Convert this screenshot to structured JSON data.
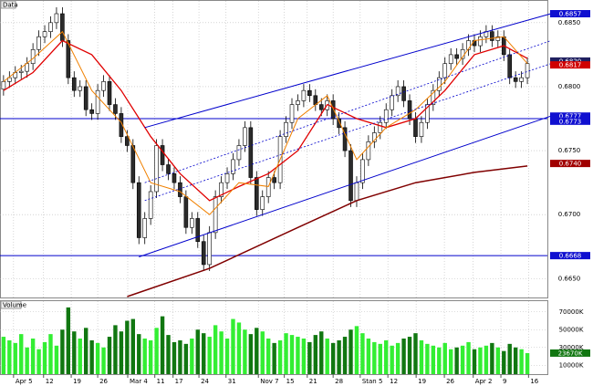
{
  "chart_data": {
    "type": "candlestick",
    "label": "Data",
    "volume_title": "Volume",
    "ylim": [
      0.6636,
      0.6862
    ],
    "yticks": [
      {
        "value": 0.685,
        "label": "0.6850"
      },
      {
        "value": 0.68,
        "label": "0.6800"
      },
      {
        "value": 0.675,
        "label": "0.6750"
      },
      {
        "value": 0.67,
        "label": "0.6700"
      },
      {
        "value": 0.665,
        "label": "0.6650"
      }
    ],
    "xlim": [
      -0.6,
      92.4
    ],
    "xticks": [
      {
        "value": 1.7,
        "label": "Apr 5"
      },
      {
        "value": 6.8,
        "label": "12"
      },
      {
        "value": 11.5,
        "label": "19"
      },
      {
        "value": 16,
        "label": "26"
      },
      {
        "value": 21.1,
        "label": "Mar 4"
      },
      {
        "value": 25.7,
        "label": "11"
      },
      {
        "value": 28.8,
        "label": "17"
      },
      {
        "value": 33.2,
        "label": "24"
      },
      {
        "value": 37.8,
        "label": "31"
      },
      {
        "value": 43.3,
        "label": "Nov 7"
      },
      {
        "value": 47.7,
        "label": "15"
      },
      {
        "value": 51.6,
        "label": "21"
      },
      {
        "value": 56,
        "label": "28"
      },
      {
        "value": 60.6,
        "label": "Stan 5"
      },
      {
        "value": 65.3,
        "label": "12"
      },
      {
        "value": 70.1,
        "label": "19"
      },
      {
        "value": 74.9,
        "label": "26"
      },
      {
        "value": 79.8,
        "label": "Apr 2"
      },
      {
        "value": 84.5,
        "label": "9"
      },
      {
        "value": 89.2,
        "label": "16"
      }
    ],
    "grid": true,
    "up_color": "#ffffff",
    "down_color": "#2b2b2b",
    "open": [
      0.6798,
      0.6804,
      0.6807,
      0.6811,
      0.6812,
      0.6818,
      0.6829,
      0.6839,
      0.6843,
      0.685,
      0.6857,
      0.6836,
      0.6807,
      0.6797,
      0.68,
      0.6782,
      0.6779,
      0.6797,
      0.6804,
      0.6786,
      0.6779,
      0.6761,
      0.6754,
      0.6725,
      0.6682,
      0.6697,
      0.6718,
      0.6754,
      0.6739,
      0.6732,
      0.6725,
      0.6714,
      0.669,
      0.6697,
      0.6679,
      0.6661,
      0.6686,
      0.6714,
      0.6725,
      0.6732,
      0.6743,
      0.6754,
      0.6768,
      0.6729,
      0.6704,
      0.6714,
      0.6729,
      0.6725,
      0.6761,
      0.6772,
      0.6786,
      0.6789,
      0.6797,
      0.6793,
      0.6786,
      0.6782,
      0.6789,
      0.6775,
      0.6768,
      0.675,
      0.6711,
      0.6725,
      0.6743,
      0.6757,
      0.6764,
      0.6772,
      0.6782,
      0.6793,
      0.68,
      0.6789,
      0.6775,
      0.6761,
      0.6772,
      0.6786,
      0.6797,
      0.6807,
      0.6818,
      0.6825,
      0.6822,
      0.6829,
      0.6836,
      0.6832,
      0.6839,
      0.6843,
      0.6836,
      0.6839,
      0.6825,
      0.6807,
      0.6804,
      0.6807
    ],
    "high": [
      0.6809,
      0.6812,
      0.6816,
      0.6817,
      0.6823,
      0.6834,
      0.6844,
      0.6848,
      0.6855,
      0.6862,
      0.6862,
      0.6841,
      0.6812,
      0.6805,
      0.6805,
      0.6787,
      0.6802,
      0.6809,
      0.6809,
      0.6791,
      0.6784,
      0.6766,
      0.6759,
      0.673,
      0.6702,
      0.6723,
      0.6759,
      0.6759,
      0.6744,
      0.6737,
      0.673,
      0.6719,
      0.6702,
      0.6702,
      0.6684,
      0.6691,
      0.6719,
      0.673,
      0.6737,
      0.6748,
      0.6759,
      0.6773,
      0.6773,
      0.6734,
      0.6719,
      0.6734,
      0.6734,
      0.6766,
      0.6777,
      0.6791,
      0.6794,
      0.6802,
      0.6802,
      0.6798,
      0.6791,
      0.6794,
      0.6794,
      0.678,
      0.6773,
      0.6755,
      0.673,
      0.6748,
      0.6762,
      0.6769,
      0.6777,
      0.6787,
      0.6798,
      0.6805,
      0.6805,
      0.6794,
      0.678,
      0.6777,
      0.6791,
      0.6802,
      0.6812,
      0.6823,
      0.683,
      0.683,
      0.6834,
      0.6841,
      0.6841,
      0.6844,
      0.6848,
      0.6848,
      0.6844,
      0.6844,
      0.683,
      0.6812,
      0.6812,
      0.6823
    ],
    "low": [
      0.6793,
      0.6799,
      0.6802,
      0.6806,
      0.6807,
      0.6813,
      0.6824,
      0.6834,
      0.6838,
      0.6845,
      0.6831,
      0.6802,
      0.6792,
      0.6792,
      0.6777,
      0.6774,
      0.6774,
      0.6792,
      0.6781,
      0.6774,
      0.6756,
      0.6749,
      0.672,
      0.6677,
      0.6677,
      0.6692,
      0.6713,
      0.6734,
      0.6727,
      0.672,
      0.6709,
      0.6685,
      0.6685,
      0.6674,
      0.6656,
      0.6656,
      0.6681,
      0.6709,
      0.672,
      0.6727,
      0.6738,
      0.6749,
      0.6724,
      0.6699,
      0.6699,
      0.6709,
      0.672,
      0.672,
      0.6756,
      0.6767,
      0.6781,
      0.6784,
      0.6788,
      0.6781,
      0.6777,
      0.6777,
      0.677,
      0.6763,
      0.6745,
      0.6706,
      0.6706,
      0.672,
      0.6738,
      0.6752,
      0.6759,
      0.6767,
      0.6777,
      0.6788,
      0.6784,
      0.677,
      0.6756,
      0.6756,
      0.6767,
      0.6781,
      0.6792,
      0.6802,
      0.6813,
      0.6817,
      0.6817,
      0.6824,
      0.6827,
      0.6827,
      0.6834,
      0.6831,
      0.6831,
      0.682,
      0.6802,
      0.6799,
      0.6799,
      0.6802
    ],
    "close": [
      0.6804,
      0.6807,
      0.6811,
      0.6812,
      0.6818,
      0.6829,
      0.6839,
      0.6843,
      0.685,
      0.6857,
      0.6836,
      0.6807,
      0.6797,
      0.68,
      0.6782,
      0.6779,
      0.6797,
      0.6804,
      0.6786,
      0.6779,
      0.6761,
      0.6754,
      0.6725,
      0.6682,
      0.6697,
      0.6718,
      0.6754,
      0.6739,
      0.6732,
      0.6725,
      0.6714,
      0.669,
      0.6697,
      0.6679,
      0.6661,
      0.6686,
      0.6714,
      0.6725,
      0.6732,
      0.6743,
      0.6754,
      0.6768,
      0.6729,
      0.6704,
      0.6714,
      0.6729,
      0.6725,
      0.6761,
      0.6772,
      0.6786,
      0.6789,
      0.6797,
      0.6793,
      0.6786,
      0.6782,
      0.6789,
      0.6775,
      0.6768,
      0.675,
      0.6711,
      0.6725,
      0.6743,
      0.6757,
      0.6764,
      0.6772,
      0.6782,
      0.6793,
      0.68,
      0.6789,
      0.6775,
      0.6761,
      0.6772,
      0.6786,
      0.6797,
      0.6807,
      0.6818,
      0.6825,
      0.6822,
      0.6829,
      0.6836,
      0.6832,
      0.6839,
      0.6843,
      0.6836,
      0.6839,
      0.6825,
      0.6807,
      0.6804,
      0.6807,
      0.6818
    ],
    "lines": [
      {
        "color": "#e00000",
        "width": 1.3,
        "x": [
          0,
          5,
          10,
          15,
          20,
          25,
          30,
          35,
          40,
          45,
          50,
          55,
          60,
          65,
          70,
          75,
          80,
          85,
          89
        ],
        "values": [
          0.6797,
          0.6811,
          0.6836,
          0.6825,
          0.6797,
          0.6761,
          0.6732,
          0.6711,
          0.6722,
          0.6732,
          0.675,
          0.6786,
          0.6775,
          0.6768,
          0.6775,
          0.6797,
          0.6825,
          0.6832,
          0.6822
        ]
      },
      {
        "color": "#f08000",
        "width": 1,
        "x": [
          0,
          5,
          10,
          15,
          20,
          25,
          30,
          35,
          40,
          45,
          50,
          55,
          60,
          65,
          70,
          75,
          80,
          85,
          89
        ],
        "values": [
          0.6804,
          0.6822,
          0.6843,
          0.6797,
          0.6772,
          0.6725,
          0.6718,
          0.67,
          0.6725,
          0.6722,
          0.6775,
          0.6793,
          0.6743,
          0.6768,
          0.6782,
          0.6804,
          0.6836,
          0.6839,
          0.6818
        ]
      },
      {
        "color": "#800000",
        "width": 1.5,
        "x": [
          21,
          35,
          50,
          60,
          70,
          80,
          89
        ],
        "values": [
          0.6636,
          0.6658,
          0.669,
          0.6711,
          0.6725,
          0.6733,
          0.6738
        ]
      },
      {
        "color": "#0000cc",
        "width": 1,
        "x": [
          24,
          93
        ],
        "values": [
          0.6768,
          0.6857
        ]
      },
      {
        "color": "#0000cc",
        "width": 1,
        "x": [
          23,
          93
        ],
        "values": [
          0.6667,
          0.6777
        ]
      },
      {
        "color": "#0000cc",
        "width": 0.8,
        "dash": true,
        "x": [
          24,
          93
        ],
        "values": [
          0.6725,
          0.6836
        ]
      },
      {
        "color": "#0000cc",
        "width": 0.8,
        "dash": true,
        "x": [
          24,
          93
        ],
        "values": [
          0.6711,
          0.6818
        ]
      }
    ],
    "hlines": [
      {
        "value": 0.6775,
        "color": "#0000cc"
      },
      {
        "value": 0.6668,
        "color": "#0000cc"
      }
    ],
    "price_labels": [
      {
        "value": 0.6857,
        "label": "0.6857",
        "color": "#1010d0"
      },
      {
        "value": 0.682,
        "label": "0.6820",
        "color": "#202060"
      },
      {
        "value": 0.6817,
        "label": "0.6817",
        "color": "#d00000"
      },
      {
        "value": 0.6777,
        "label": "0.6777",
        "color": "#1010d0"
      },
      {
        "value": 0.6773,
        "label": "0.6773",
        "color": "#1010d0"
      },
      {
        "value": 0.674,
        "label": "0.6740",
        "color": "#a00000"
      },
      {
        "value": 0.6668,
        "label": "0.6668",
        "color": "#1010d0"
      }
    ],
    "volume": [
      42000,
      38000,
      35000,
      45000,
      30000,
      40000,
      28000,
      36000,
      45000,
      32000,
      50000,
      75000,
      48000,
      40000,
      52000,
      38000,
      35000,
      30000,
      42000,
      55000,
      48000,
      60000,
      62000,
      45000,
      40000,
      38000,
      52000,
      65000,
      44000,
      36000,
      38000,
      34000,
      40000,
      50000,
      46000,
      42000,
      55000,
      48000,
      40000,
      62000,
      58000,
      50000,
      45000,
      52000,
      48000,
      40000,
      35000,
      38000,
      46000,
      44000,
      42000,
      40000,
      36000,
      44000,
      48000,
      40000,
      35000,
      38000,
      42000,
      50000,
      54000,
      46000,
      40000,
      36000,
      34000,
      38000,
      32000,
      35000,
      40000,
      42000,
      46000,
      38000,
      34000,
      32000,
      30000,
      35000,
      28000,
      30000,
      32000,
      36000,
      28000,
      30000,
      32000,
      35000,
      30000,
      26000,
      34000,
      30000,
      28000,
      23670
    ],
    "volume_up_color": "#33ee33",
    "volume_down_color": "#117711",
    "volume_ylim": [
      0,
      80000
    ],
    "volume_yticks": [
      {
        "value": 70000,
        "label": "70000K"
      },
      {
        "value": 50000,
        "label": "50000K"
      },
      {
        "value": 30000,
        "label": "30000K"
      },
      {
        "value": 10000,
        "label": "10000K"
      }
    ],
    "volume_label": {
      "value": 23670,
      "label": "23670K",
      "color": "#117711"
    }
  }
}
